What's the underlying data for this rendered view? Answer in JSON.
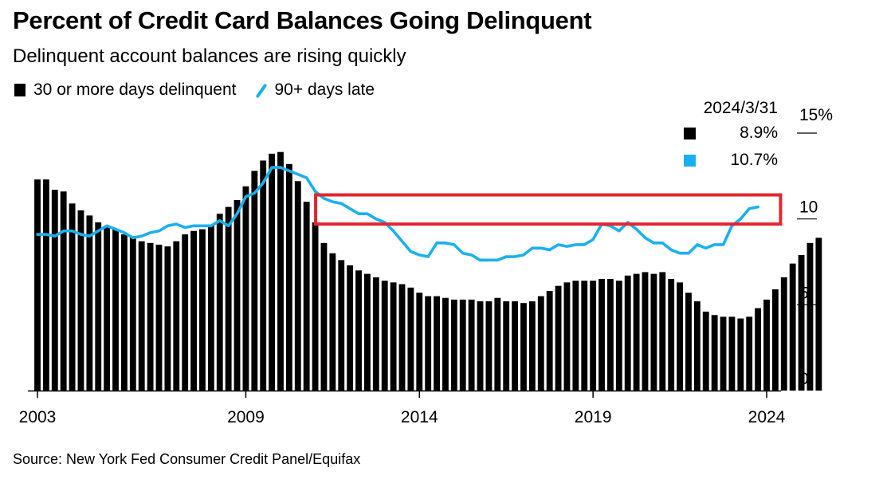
{
  "title": "Percent of Credit Card Balances Going Delinquent",
  "subtitle": "Delinquent account balances are rising quickly",
  "legend": {
    "bar_label": "30 or more days delinquent",
    "line_label": "90+ days late"
  },
  "readout": {
    "date": "2024/3/31",
    "bar_value": "8.9%",
    "line_value": "10.7%"
  },
  "source": "Source: New York Fed Consumer Credit Panel/Equifax",
  "colors": {
    "bar": "#000000",
    "line": "#1ab0f0",
    "highlight": "#e3262e"
  },
  "chart_data": {
    "type": "bar",
    "title": "Percent of Credit Card Balances Going Delinquent",
    "subtitle": "Delinquent account balances are rising quickly",
    "xlabel": "",
    "ylabel": "",
    "xlim": [
      2003,
      2024.25
    ],
    "ylim": [
      0,
      15
    ],
    "x_ticks": [
      2003,
      2009,
      2014,
      2019,
      2024
    ],
    "x_tick_labels": [
      "2003",
      "2009",
      "2014",
      "2019",
      "2024"
    ],
    "y_ticks": [
      0,
      5,
      10,
      15
    ],
    "y_tick_labels": [
      "0",
      "5",
      "10",
      "15%"
    ],
    "series": [
      {
        "name": "30 or more days delinquent",
        "type": "bar",
        "start": 2003.0,
        "step": 0.25,
        "values": [
          12.3,
          12.3,
          11.7,
          11.6,
          10.9,
          10.5,
          10.2,
          9.8,
          9.6,
          9.4,
          9.1,
          9.0,
          8.7,
          8.6,
          8.5,
          8.4,
          8.7,
          9.1,
          9.3,
          9.4,
          9.6,
          10.3,
          10.7,
          11.1,
          11.9,
          12.8,
          13.4,
          13.8,
          13.9,
          13.2,
          12.2,
          11.0,
          9.8,
          8.6,
          8.0,
          7.6,
          7.3,
          7.0,
          6.8,
          6.6,
          6.4,
          6.3,
          6.2,
          6.0,
          5.7,
          5.5,
          5.5,
          5.4,
          5.3,
          5.3,
          5.3,
          5.2,
          5.2,
          5.4,
          5.2,
          5.2,
          5.1,
          5.2,
          5.5,
          5.8,
          6.1,
          6.3,
          6.4,
          6.4,
          6.4,
          6.5,
          6.5,
          6.4,
          6.7,
          6.8,
          6.9,
          6.8,
          6.9,
          6.5,
          6.3,
          5.7,
          5.2,
          4.6,
          4.4,
          4.3,
          4.3,
          4.2,
          4.3,
          4.8,
          5.3,
          5.9,
          6.6,
          7.4,
          7.9,
          8.6,
          8.9
        ]
      },
      {
        "name": "90+ days late",
        "type": "line",
        "points": [
          [
            2003.0,
            9.1
          ],
          [
            2003.25,
            9.1
          ],
          [
            2003.5,
            9.0
          ],
          [
            2003.75,
            9.3
          ],
          [
            2004.0,
            9.3
          ],
          [
            2004.25,
            9.1
          ],
          [
            2004.5,
            9.0
          ],
          [
            2004.75,
            9.3
          ],
          [
            2005.0,
            9.6
          ],
          [
            2005.25,
            9.4
          ],
          [
            2005.5,
            9.2
          ],
          [
            2005.75,
            8.9
          ],
          [
            2006.0,
            9.0
          ],
          [
            2006.25,
            9.2
          ],
          [
            2006.5,
            9.3
          ],
          [
            2006.75,
            9.6
          ],
          [
            2007.0,
            9.7
          ],
          [
            2007.25,
            9.5
          ],
          [
            2007.5,
            9.6
          ],
          [
            2007.75,
            9.6
          ],
          [
            2008.0,
            9.6
          ],
          [
            2008.25,
            9.9
          ],
          [
            2008.5,
            9.6
          ],
          [
            2008.75,
            10.3
          ],
          [
            2009.0,
            11.3
          ],
          [
            2009.25,
            11.5
          ],
          [
            2009.5,
            12.1
          ],
          [
            2009.75,
            13.0
          ],
          [
            2010.0,
            13.0
          ],
          [
            2010.25,
            12.8
          ],
          [
            2010.5,
            12.6
          ],
          [
            2010.75,
            12.4
          ],
          [
            2011.0,
            11.6
          ],
          [
            2011.25,
            11.2
          ],
          [
            2011.5,
            11.0
          ],
          [
            2011.75,
            10.9
          ],
          [
            2012.0,
            10.6
          ],
          [
            2012.25,
            10.3
          ],
          [
            2012.5,
            10.3
          ],
          [
            2012.75,
            10.0
          ],
          [
            2013.0,
            9.8
          ],
          [
            2013.25,
            9.3
          ],
          [
            2013.5,
            8.7
          ],
          [
            2013.75,
            8.1
          ],
          [
            2014.0,
            7.9
          ],
          [
            2014.25,
            7.8
          ],
          [
            2014.5,
            8.6
          ],
          [
            2014.75,
            8.6
          ],
          [
            2015.0,
            8.5
          ],
          [
            2015.25,
            8.0
          ],
          [
            2015.5,
            7.9
          ],
          [
            2015.75,
            7.6
          ],
          [
            2016.0,
            7.6
          ],
          [
            2016.25,
            7.6
          ],
          [
            2016.5,
            7.8
          ],
          [
            2016.75,
            7.8
          ],
          [
            2017.0,
            7.9
          ],
          [
            2017.25,
            8.3
          ],
          [
            2017.5,
            8.3
          ],
          [
            2017.75,
            8.2
          ],
          [
            2018.0,
            8.5
          ],
          [
            2018.25,
            8.4
          ],
          [
            2018.5,
            8.5
          ],
          [
            2018.75,
            8.5
          ],
          [
            2019.0,
            8.8
          ],
          [
            2019.25,
            9.7
          ],
          [
            2019.5,
            9.6
          ],
          [
            2019.75,
            9.3
          ],
          [
            2020.0,
            9.8
          ],
          [
            2020.25,
            9.4
          ],
          [
            2020.5,
            8.9
          ],
          [
            2020.75,
            8.6
          ],
          [
            2021.0,
            8.6
          ],
          [
            2021.25,
            8.2
          ],
          [
            2021.5,
            8.0
          ],
          [
            2021.75,
            8.0
          ],
          [
            2022.0,
            8.5
          ],
          [
            2022.25,
            8.3
          ],
          [
            2022.5,
            8.5
          ],
          [
            2022.75,
            8.5
          ],
          [
            2023.0,
            9.6
          ],
          [
            2023.25,
            10.0
          ],
          [
            2023.5,
            10.6
          ],
          [
            2023.75,
            10.7
          ]
        ]
      }
    ],
    "annotations": [
      {
        "type": "highlight-box",
        "x_range": [
          2011.0,
          2024.4
        ],
        "y_range": [
          9.7,
          11.4
        ],
        "color": "#e3262e"
      }
    ],
    "readout": {
      "date": "2024/3/31",
      "values": [
        "8.9%",
        "10.7%"
      ]
    },
    "legend_position": "top-left",
    "grid": false
  }
}
